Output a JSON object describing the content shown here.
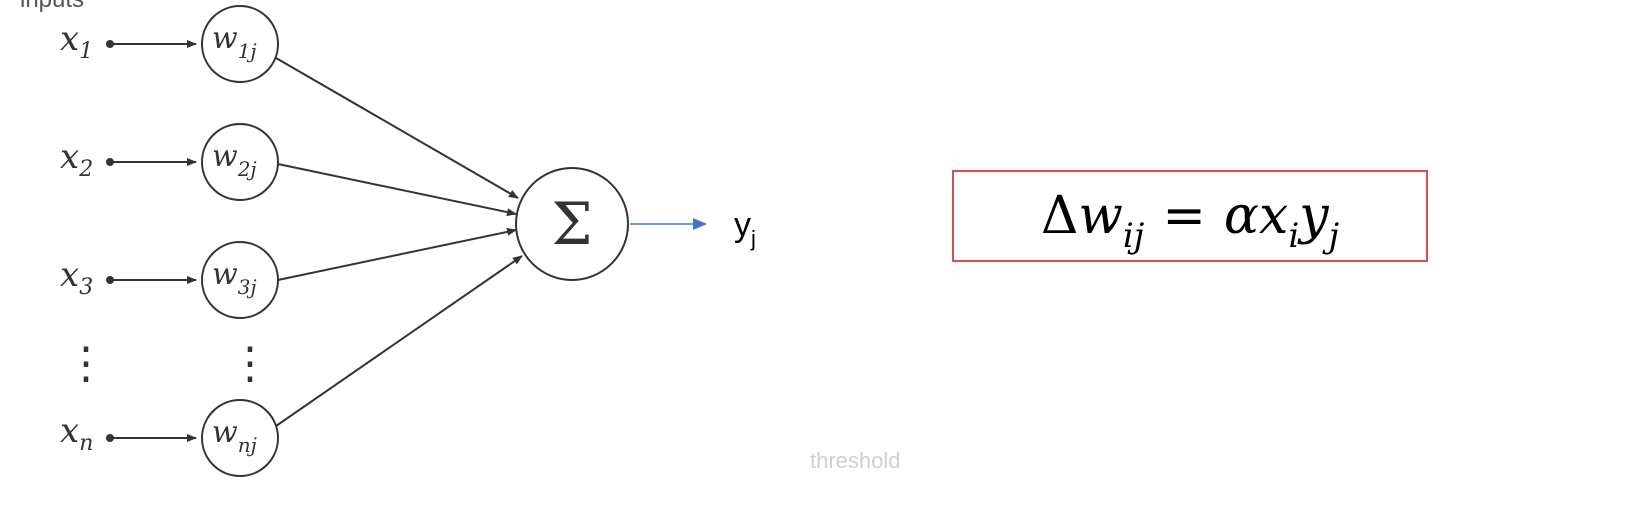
{
  "diagram": {
    "header_fragment": "inputs",
    "inputs": [
      {
        "var": "x",
        "sub": "1",
        "weight": "w",
        "weight_sub": "1j"
      },
      {
        "var": "x",
        "sub": "2",
        "weight": "w",
        "weight_sub": "2j"
      },
      {
        "var": "x",
        "sub": "3",
        "weight": "w",
        "weight_sub": "3j"
      },
      {
        "var": "x",
        "sub": "n",
        "weight": "w",
        "weight_sub": "nj"
      }
    ],
    "ellipsis": "⋮",
    "sum_symbol": "Σ",
    "output": {
      "var": "y",
      "sub": "j",
      "arrow_color": "#4472C4"
    },
    "faint_fragment": "threshold"
  },
  "formula": {
    "delta": "Δ",
    "w": "w",
    "w_sub": "ij",
    "equals": "=",
    "alpha": "α",
    "x": "x",
    "x_sub": "i",
    "y": "y",
    "y_sub": "j",
    "border_color": "#E14B4B"
  }
}
